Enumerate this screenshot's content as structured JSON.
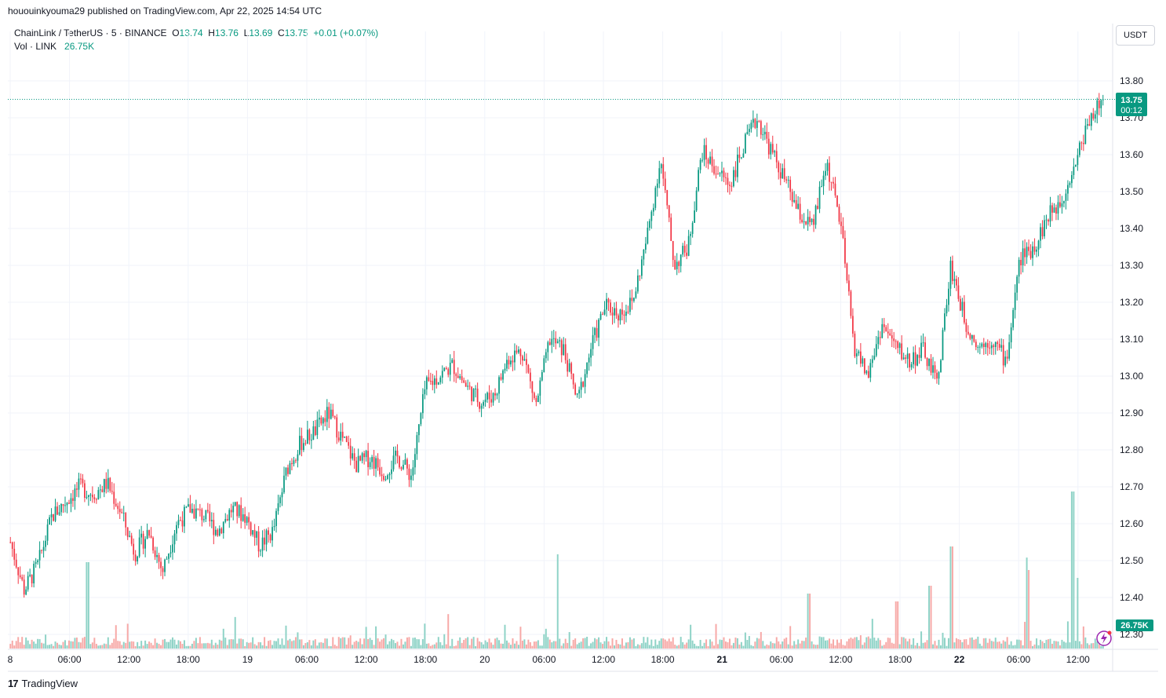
{
  "header": {
    "published_line": "hououinkyouma29 published on TradingView.com, Apr 22, 2025 14:54 UTC"
  },
  "legend": {
    "symbol": "ChainLink / TetherUS · 5 · BINANCE",
    "o_label": "O",
    "o_value": "13.74",
    "h_label": "H",
    "h_value": "13.76",
    "l_label": "L",
    "l_value": "13.69",
    "c_label": "C",
    "c_value": "13.75",
    "change": "+0.01 (+0.07%)",
    "vol_label": "Vol · LINK",
    "vol_value": "26.75K"
  },
  "currency_button": "USDT",
  "price_tag": {
    "price": "13.75",
    "countdown": "00:12"
  },
  "volume_tag": "26.75K",
  "footer": {
    "logo": "17",
    "brand": "TradingView"
  },
  "colors": {
    "up": "#089981",
    "down": "#F23645",
    "up_vol": "#8FD3C7",
    "down_vol": "#F7A9A7",
    "grid": "#F0F3FA",
    "tag": "#089981"
  },
  "chart_data": {
    "type": "candlestick",
    "symbol": "LINKUSDT",
    "interval": "5",
    "ylim": [
      12.27,
      13.85
    ],
    "y_ticks": [
      "13.80",
      "13.70",
      "13.60",
      "13.50",
      "13.40",
      "13.30",
      "13.20",
      "13.10",
      "13.00",
      "12.90",
      "12.80",
      "12.70",
      "12.60",
      "12.50",
      "12.40",
      "12.30"
    ],
    "x_ticks": [
      "8",
      "06:00",
      "12:00",
      "18:00",
      "19",
      "06:00",
      "12:00",
      "18:00",
      "20",
      "06:00",
      "12:00",
      "18:00",
      "21",
      "06:00",
      "12:00",
      "18:00",
      "22",
      "06:00",
      "12:00"
    ],
    "bold_x_ticks": [
      12,
      16
    ],
    "last_price": 13.75,
    "price_path": [
      [
        0,
        12.55
      ],
      [
        1,
        12.42
      ],
      [
        2,
        12.49
      ],
      [
        3,
        12.62
      ],
      [
        4,
        12.66
      ],
      [
        5,
        12.7
      ],
      [
        6,
        12.68
      ],
      [
        7,
        12.71
      ],
      [
        8,
        12.63
      ],
      [
        9,
        12.52
      ],
      [
        10,
        12.58
      ],
      [
        11,
        12.47
      ],
      [
        12,
        12.6
      ],
      [
        13,
        12.64
      ],
      [
        14,
        12.62
      ],
      [
        15,
        12.58
      ],
      [
        16,
        12.64
      ],
      [
        17,
        12.62
      ],
      [
        18,
        12.54
      ],
      [
        19,
        12.58
      ],
      [
        20,
        12.75
      ],
      [
        21,
        12.82
      ],
      [
        22,
        12.85
      ],
      [
        23,
        12.9
      ],
      [
        24,
        12.83
      ],
      [
        25,
        12.76
      ],
      [
        26,
        12.78
      ],
      [
        27,
        12.74
      ],
      [
        28,
        12.78
      ],
      [
        29,
        12.73
      ],
      [
        30,
        12.97
      ],
      [
        31,
        13.0
      ],
      [
        32,
        13.03
      ],
      [
        33,
        12.97
      ],
      [
        34,
        12.93
      ],
      [
        35,
        12.95
      ],
      [
        36,
        13.05
      ],
      [
        37,
        13.07
      ],
      [
        38,
        12.92
      ],
      [
        39,
        13.1
      ],
      [
        40,
        13.07
      ],
      [
        41,
        12.93
      ],
      [
        42,
        13.08
      ],
      [
        43,
        13.19
      ],
      [
        44,
        13.17
      ],
      [
        45,
        13.2
      ],
      [
        46,
        13.37
      ],
      [
        47,
        13.59
      ],
      [
        48,
        13.3
      ],
      [
        49,
        13.35
      ],
      [
        50,
        13.61
      ],
      [
        51,
        13.56
      ],
      [
        52,
        13.52
      ],
      [
        53,
        13.62
      ],
      [
        54,
        13.7
      ],
      [
        55,
        13.61
      ],
      [
        56,
        13.53
      ],
      [
        57,
        13.44
      ],
      [
        58,
        13.4
      ],
      [
        59,
        13.58
      ],
      [
        60,
        13.42
      ],
      [
        61,
        13.08
      ],
      [
        62,
        13.0
      ],
      [
        63,
        13.14
      ],
      [
        64,
        13.08
      ],
      [
        65,
        13.04
      ],
      [
        66,
        13.07
      ],
      [
        67,
        12.98
      ],
      [
        68,
        13.3
      ],
      [
        69,
        13.15
      ],
      [
        70,
        13.08
      ],
      [
        71,
        13.1
      ],
      [
        72,
        13.04
      ],
      [
        73,
        13.32
      ],
      [
        74,
        13.35
      ],
      [
        75,
        13.43
      ],
      [
        76,
        13.48
      ],
      [
        77,
        13.58
      ],
      [
        78,
        13.7
      ],
      [
        79,
        13.75
      ]
    ],
    "volume_spikes": [
      [
        0.07,
        0.55
      ],
      [
        0.5,
        0.6
      ],
      [
        0.73,
        0.35
      ],
      [
        0.81,
        0.3
      ],
      [
        0.84,
        0.4
      ],
      [
        0.86,
        0.65
      ],
      [
        0.93,
        0.5
      ],
      [
        0.97,
        1.0
      ],
      [
        0.975,
        0.45
      ]
    ]
  }
}
